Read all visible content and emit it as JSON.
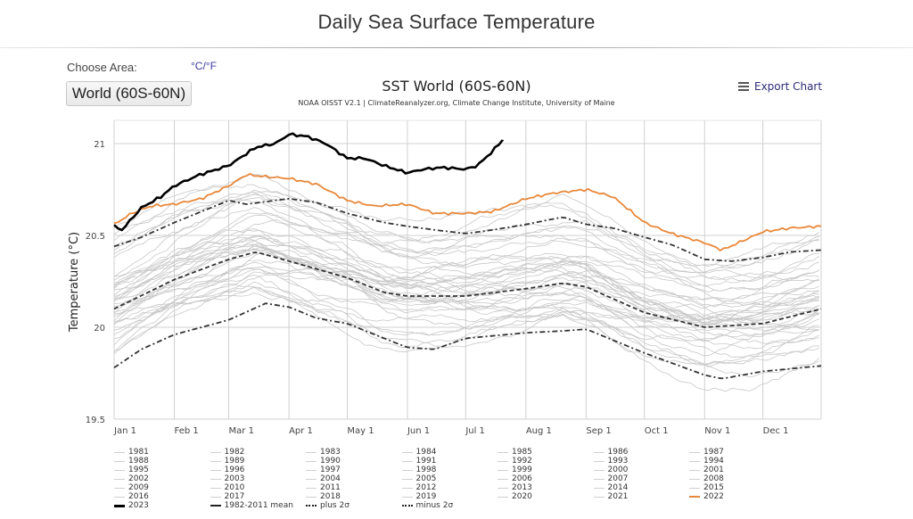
{
  "header": {
    "title": "Daily Sea Surface Temperature"
  },
  "controls": {
    "choose_area_label": "Choose Area:",
    "unit_toggle": "°C/°F",
    "area_button": "World (60S-60N)",
    "export_label": "Export Chart",
    "export_icon": "menu-icon"
  },
  "chart_data": {
    "type": "line",
    "title": "SST World (60S-60N)",
    "subtitle": "NOAA OISST V2.1 | ClimateReanalyzer.org, Climate Change Institute, University of Maine",
    "xlabel": "",
    "ylabel": "Temperature (°C)",
    "ylim": [
      19.5,
      21.2
    ],
    "yticks": [
      19.5,
      20,
      20.5,
      21
    ],
    "ytick_labels": [
      "19.5",
      "20",
      "20.5",
      "21"
    ],
    "xlim_day_of_year": [
      1,
      365
    ],
    "xticks_day_of_year": [
      1,
      32,
      60,
      91,
      121,
      152,
      182,
      213,
      244,
      274,
      305,
      335
    ],
    "xtick_labels": [
      "Jan 1",
      "Feb 1",
      "Mar 1",
      "Apr 1",
      "May 1",
      "Jun 1",
      "Jul 1",
      "Aug 1",
      "Sep 1",
      "Oct 1",
      "Nov 1",
      "Dec 1"
    ],
    "grid": true,
    "legend_position": "bottom",
    "highlight_series": [
      {
        "name": "2023",
        "color": "#000000",
        "style": "solid-thick",
        "days": [
          1,
          5,
          15,
          25,
          32,
          45,
          60,
          74,
          84,
          91,
          100,
          110,
          121,
          130,
          140,
          152,
          160,
          170,
          182,
          188,
          196,
          201
        ],
        "values": [
          20.55,
          20.53,
          20.65,
          20.71,
          20.77,
          20.83,
          20.88,
          20.98,
          21.0,
          21.05,
          21.04,
          21.0,
          20.92,
          20.92,
          20.88,
          20.84,
          20.86,
          20.87,
          20.86,
          20.88,
          20.96,
          21.02
        ]
      },
      {
        "name": "2022",
        "color": "#e8883a",
        "style": "solid",
        "days": [
          1,
          10,
          20,
          32,
          46,
          60,
          69,
          79,
          91,
          105,
          121,
          135,
          152,
          166,
          182,
          196,
          213,
          227,
          244,
          258,
          274,
          288,
          305,
          314,
          335,
          349,
          365
        ],
        "values": [
          20.56,
          20.62,
          20.66,
          20.67,
          20.7,
          20.77,
          20.83,
          20.82,
          20.81,
          20.78,
          20.69,
          20.66,
          20.67,
          20.62,
          20.62,
          20.63,
          20.7,
          20.73,
          20.75,
          20.71,
          20.57,
          20.51,
          20.46,
          20.42,
          20.52,
          20.54,
          20.55
        ]
      },
      {
        "name": "1982-2011 mean",
        "color": "#333333",
        "style": "dashed",
        "days": [
          1,
          32,
          60,
          74,
          91,
          121,
          140,
          152,
          182,
          213,
          232,
          244,
          274,
          305,
          335,
          365
        ],
        "values": [
          20.1,
          20.26,
          20.37,
          20.41,
          20.36,
          20.27,
          20.19,
          20.17,
          20.17,
          20.21,
          20.24,
          20.22,
          20.08,
          20.0,
          20.02,
          20.1
        ]
      },
      {
        "name": "plus 2σ",
        "color": "#333333",
        "style": "dash-dot",
        "days": [
          1,
          15,
          32,
          46,
          60,
          69,
          91,
          105,
          121,
          140,
          152,
          166,
          182,
          196,
          213,
          232,
          244,
          258,
          274,
          288,
          305,
          319,
          335,
          349,
          365
        ],
        "values": [
          20.44,
          20.49,
          20.57,
          20.63,
          20.69,
          20.67,
          20.7,
          20.68,
          20.62,
          20.57,
          20.55,
          20.53,
          20.51,
          20.53,
          20.56,
          20.6,
          20.56,
          20.54,
          20.49,
          20.45,
          20.37,
          20.36,
          20.38,
          20.41,
          20.42
        ]
      },
      {
        "name": "minus 2σ",
        "color": "#333333",
        "style": "dash-dot",
        "days": [
          1,
          15,
          32,
          60,
          79,
          91,
          105,
          121,
          140,
          152,
          166,
          182,
          213,
          232,
          244,
          274,
          305,
          314,
          335,
          365
        ],
        "values": [
          19.78,
          19.88,
          19.96,
          20.04,
          20.13,
          20.11,
          20.05,
          20.02,
          19.94,
          19.89,
          19.88,
          19.94,
          19.97,
          19.98,
          19.99,
          19.86,
          19.74,
          19.72,
          19.76,
          19.79
        ]
      }
    ],
    "background_years": {
      "color": "#c8c8c8",
      "years": [
        1981,
        1982,
        1983,
        1984,
        1985,
        1986,
        1987,
        1988,
        1989,
        1990,
        1991,
        1992,
        1993,
        1994,
        1995,
        1996,
        1997,
        1998,
        1999,
        2000,
        2001,
        2002,
        2003,
        2004,
        2005,
        2006,
        2007,
        2008,
        2009,
        2010,
        2011,
        2012,
        2013,
        2014,
        2015,
        2016,
        2017,
        2018,
        2019,
        2020,
        2021
      ],
      "approx_anomaly_vs_mean": [
        -0.22,
        -0.18,
        -0.05,
        -0.2,
        -0.24,
        -0.18,
        0.02,
        -0.05,
        -0.15,
        -0.02,
        -0.06,
        -0.1,
        -0.06,
        -0.04,
        -0.02,
        -0.07,
        0.12,
        0.2,
        -0.02,
        0.0,
        0.06,
        0.08,
        0.1,
        0.08,
        0.12,
        0.08,
        0.03,
        0.02,
        0.1,
        0.18,
        0.04,
        0.1,
        0.12,
        0.22,
        0.32,
        0.4,
        0.3,
        0.26,
        0.36,
        0.38,
        0.3
      ]
    }
  },
  "legend": {
    "items": [
      {
        "label": "1981",
        "kind": "gray"
      },
      {
        "label": "1982",
        "kind": "gray"
      },
      {
        "label": "1983",
        "kind": "gray"
      },
      {
        "label": "1984",
        "kind": "gray"
      },
      {
        "label": "1985",
        "kind": "gray"
      },
      {
        "label": "1986",
        "kind": "gray"
      },
      {
        "label": "1987",
        "kind": "gray"
      },
      {
        "label": "1988",
        "kind": "gray"
      },
      {
        "label": "1989",
        "kind": "gray"
      },
      {
        "label": "1990",
        "kind": "gray"
      },
      {
        "label": "1991",
        "kind": "gray"
      },
      {
        "label": "1992",
        "kind": "gray"
      },
      {
        "label": "1993",
        "kind": "gray"
      },
      {
        "label": "1994",
        "kind": "gray"
      },
      {
        "label": "1995",
        "kind": "gray"
      },
      {
        "label": "1996",
        "kind": "gray"
      },
      {
        "label": "1997",
        "kind": "gray"
      },
      {
        "label": "1998",
        "kind": "gray"
      },
      {
        "label": "1999",
        "kind": "gray"
      },
      {
        "label": "2000",
        "kind": "gray"
      },
      {
        "label": "2001",
        "kind": "gray"
      },
      {
        "label": "2002",
        "kind": "gray"
      },
      {
        "label": "2003",
        "kind": "gray"
      },
      {
        "label": "2004",
        "kind": "gray"
      },
      {
        "label": "2005",
        "kind": "gray"
      },
      {
        "label": "2006",
        "kind": "gray"
      },
      {
        "label": "2007",
        "kind": "gray"
      },
      {
        "label": "2008",
        "kind": "gray"
      },
      {
        "label": "2009",
        "kind": "gray"
      },
      {
        "label": "2010",
        "kind": "gray"
      },
      {
        "label": "2011",
        "kind": "gray"
      },
      {
        "label": "2012",
        "kind": "gray"
      },
      {
        "label": "2013",
        "kind": "gray"
      },
      {
        "label": "2014",
        "kind": "gray"
      },
      {
        "label": "2015",
        "kind": "gray"
      },
      {
        "label": "2016",
        "kind": "gray"
      },
      {
        "label": "2017",
        "kind": "gray"
      },
      {
        "label": "2018",
        "kind": "gray"
      },
      {
        "label": "2019",
        "kind": "gray"
      },
      {
        "label": "2020",
        "kind": "gray"
      },
      {
        "label": "2021",
        "kind": "gray"
      },
      {
        "label": "2022",
        "kind": "orange"
      },
      {
        "label": "2023",
        "kind": "black"
      },
      {
        "label": "1982-2011 mean",
        "kind": "dashed"
      },
      {
        "label": "plus 2σ",
        "kind": "dashdot"
      },
      {
        "label": "minus 2σ",
        "kind": "dashdot"
      }
    ]
  }
}
